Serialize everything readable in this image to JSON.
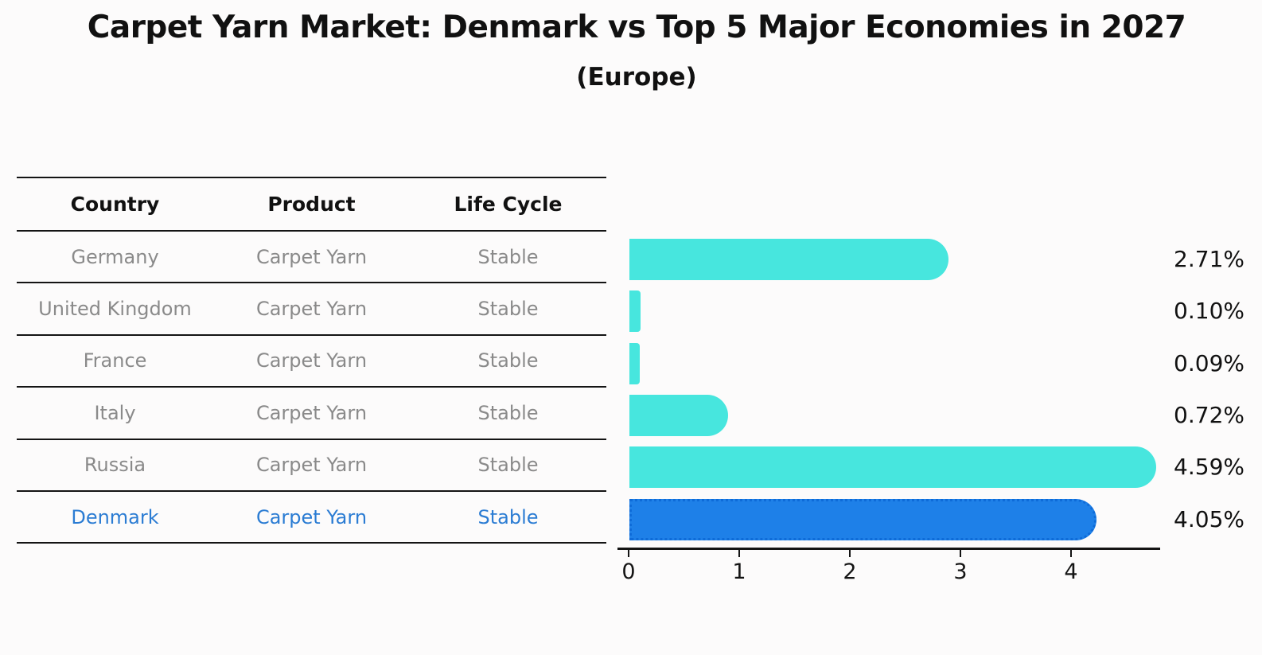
{
  "title": "Carpet Yarn Market: Denmark vs Top 5 Major Economies in 2027",
  "subtitle": "(Europe)",
  "table": {
    "headers": [
      "Country",
      "Product",
      "Life Cycle"
    ],
    "rows": [
      {
        "country": "Germany",
        "product": "Carpet Yarn",
        "life_cycle": "Stable",
        "highlighted": false
      },
      {
        "country": "United Kingdom",
        "product": "Carpet Yarn",
        "life_cycle": "Stable",
        "highlighted": false
      },
      {
        "country": "France",
        "product": "Carpet Yarn",
        "life_cycle": "Stable",
        "highlighted": false
      },
      {
        "country": "Italy",
        "product": "Carpet Yarn",
        "life_cycle": "Stable",
        "highlighted": false
      },
      {
        "country": "Russia",
        "product": "Carpet Yarn",
        "life_cycle": "Stable",
        "highlighted": false
      },
      {
        "country": "Denmark",
        "product": "Carpet Yarn",
        "life_cycle": "Stable",
        "highlighted": true
      }
    ]
  },
  "chart_data": {
    "type": "bar",
    "orientation": "horizontal",
    "title": "Carpet Yarn Market: Denmark vs Top 5 Major Economies in 2027",
    "subtitle": "(Europe)",
    "categories": [
      "Germany",
      "United Kingdom",
      "France",
      "Italy",
      "Russia",
      "Denmark"
    ],
    "values": [
      2.71,
      0.1,
      0.09,
      0.72,
      4.59,
      4.05
    ],
    "value_labels": [
      "2.71%",
      "0.10%",
      "0.09%",
      "0.72%",
      "4.59%",
      "4.05%"
    ],
    "unit": "%",
    "xlabel": "",
    "ylabel": "",
    "xlim": [
      0,
      4.8
    ],
    "x_ticks": [
      0,
      1,
      2,
      3,
      4
    ],
    "grid": false,
    "legend": false,
    "highlight_index": 5,
    "highlight_style": "dotted-border"
  },
  "colors": {
    "bar": "#47e6de",
    "highlight_bar": "#1e80e8",
    "highlight_border": "#0e6bd8",
    "row_text": "#8a8a8a",
    "highlight_text": "#2b7cd3",
    "text": "#111111",
    "background": "#fcfbfb"
  }
}
